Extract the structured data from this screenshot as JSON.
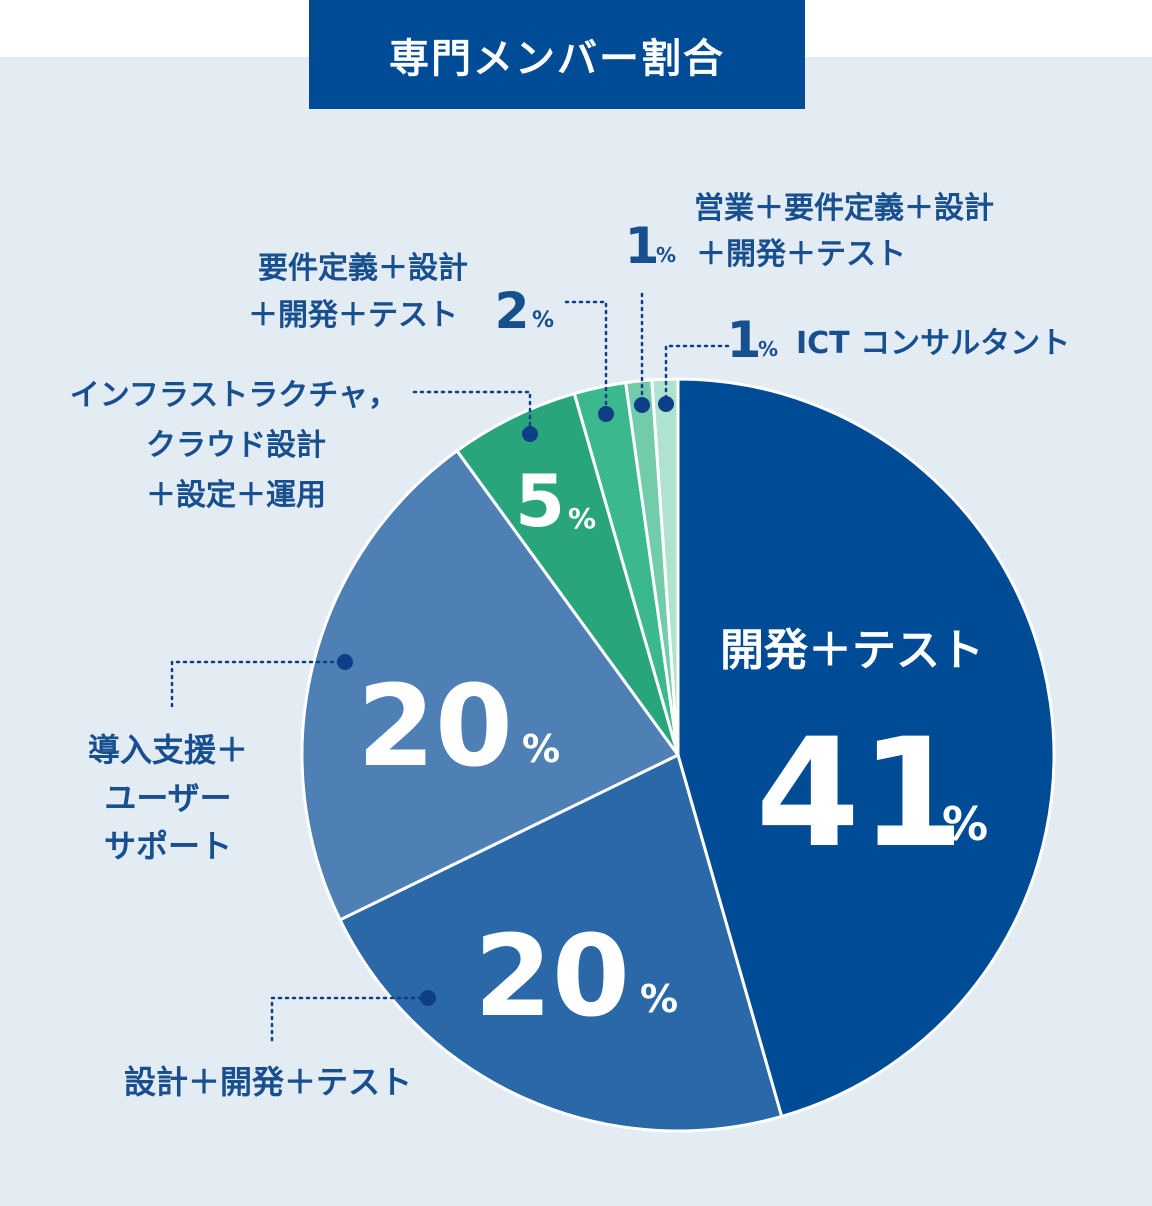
{
  "title": "専門メンバー割合",
  "colors": {
    "background": "#e3ebf3",
    "title_bg": "#004b96",
    "label_text": "#174f8f",
    "leader": "#0d3f86"
  },
  "chart_data": {
    "type": "pie",
    "title": "専門メンバー割合",
    "slices": [
      {
        "label": "開発＋テスト",
        "value": 41,
        "color": "#004b96"
      },
      {
        "label": "設計＋開発＋テスト",
        "value": 20,
        "color": "#2a68a8"
      },
      {
        "label": "導入支援＋ユーザーサポート",
        "value": 20,
        "color": "#4f80b5"
      },
      {
        "label": "インフラストラクチャ，クラウド設計＋設定＋運用",
        "value": 5,
        "color": "#29a57c"
      },
      {
        "label": "要件定義＋設計＋開発＋テスト",
        "value": 2,
        "color": "#3cb88e"
      },
      {
        "label": "営業＋要件定義＋設計＋開発＋テスト",
        "value": 1,
        "color": "#72cca9"
      },
      {
        "label": "ICT コンサルタント",
        "value": 1,
        "color": "#b0e3cf"
      }
    ],
    "percent_sign": "%"
  },
  "labels": {
    "dev_test": "開発＋テスト",
    "design_dev_test": "設計＋開発＋テスト",
    "support": [
      "導入支援＋",
      "ユーザー",
      "サポート"
    ],
    "infra": [
      "インフラストラクチャ，",
      "クラウド設計",
      "＋設定＋運用"
    ],
    "req": [
      "要件定義＋設計",
      "＋開発＋テスト"
    ],
    "sales": [
      "営業＋要件定義＋設計",
      "＋開発＋テスト"
    ],
    "ict": "ICT コンサルタント"
  }
}
